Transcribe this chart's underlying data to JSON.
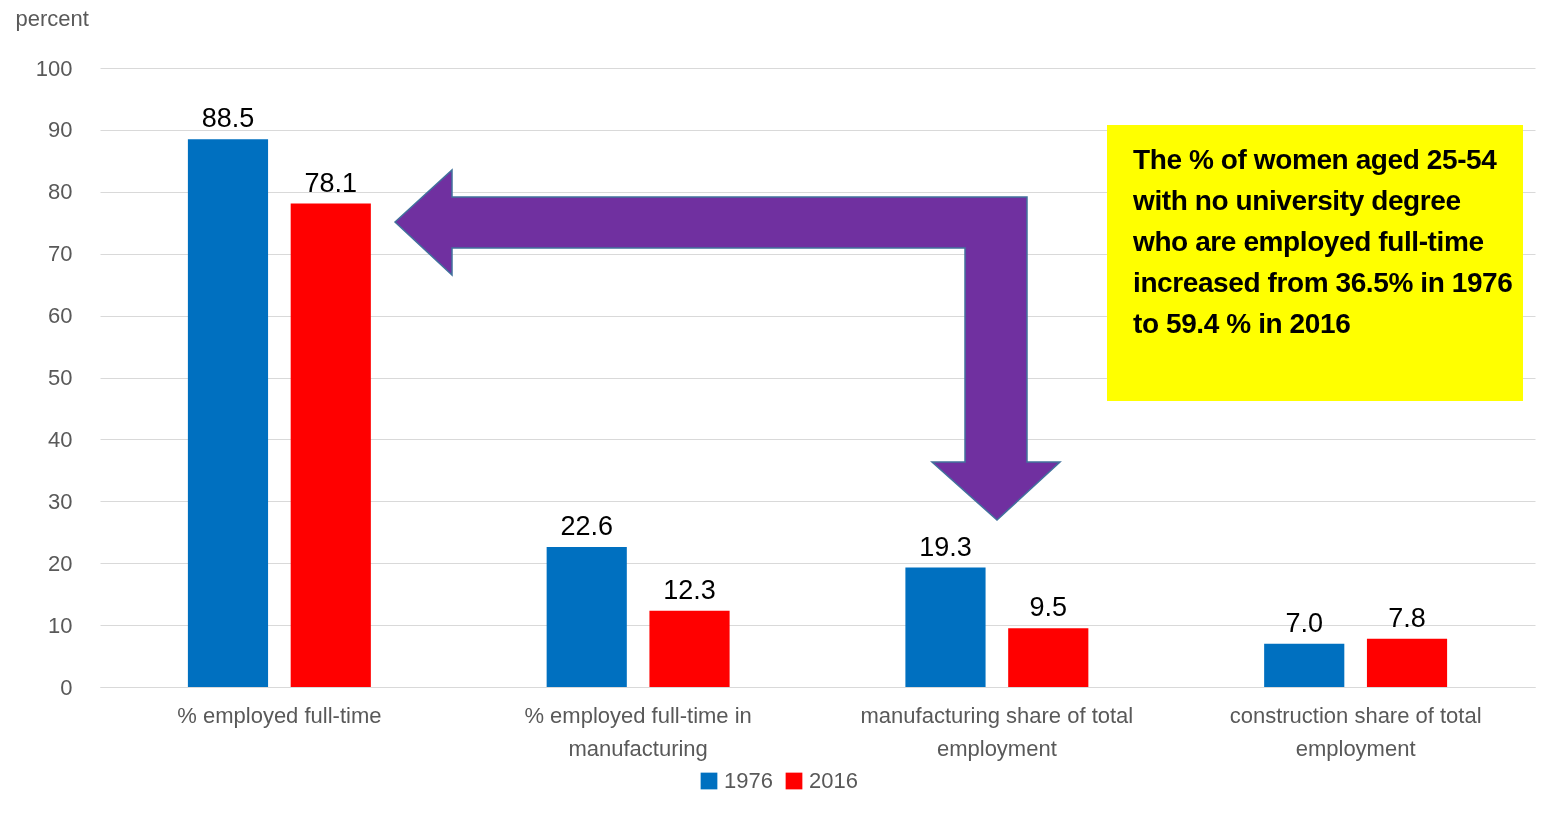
{
  "chart_data": {
    "type": "bar",
    "ylabel": "percent",
    "categories": [
      "% employed full-time",
      "% employed full-time in manufacturing",
      "manufacturing share of total employment",
      "construction share of total employment"
    ],
    "series": [
      {
        "name": "1976",
        "color": "#0070c0",
        "values": [
          88.5,
          22.6,
          19.3,
          7.0
        ],
        "value_labels": [
          "88.5",
          "22.6",
          "19.3",
          "7.0"
        ]
      },
      {
        "name": "2016",
        "color": "#ff0000",
        "values": [
          78.1,
          12.3,
          9.5,
          7.8
        ],
        "value_labels": [
          "78.1",
          "12.3",
          "9.5",
          "7.8"
        ]
      }
    ],
    "ylim": [
      0,
      100
    ],
    "yticks": [
      0,
      10,
      20,
      30,
      40,
      50,
      60,
      70,
      80,
      90,
      100
    ],
    "grid": "y",
    "legend": "bottom",
    "annotations": [
      "The  % of women aged 25-54  with no university degree who are employed full-time increased from  36.5% in 1976  to 59.4 % in 2016"
    ]
  }
}
